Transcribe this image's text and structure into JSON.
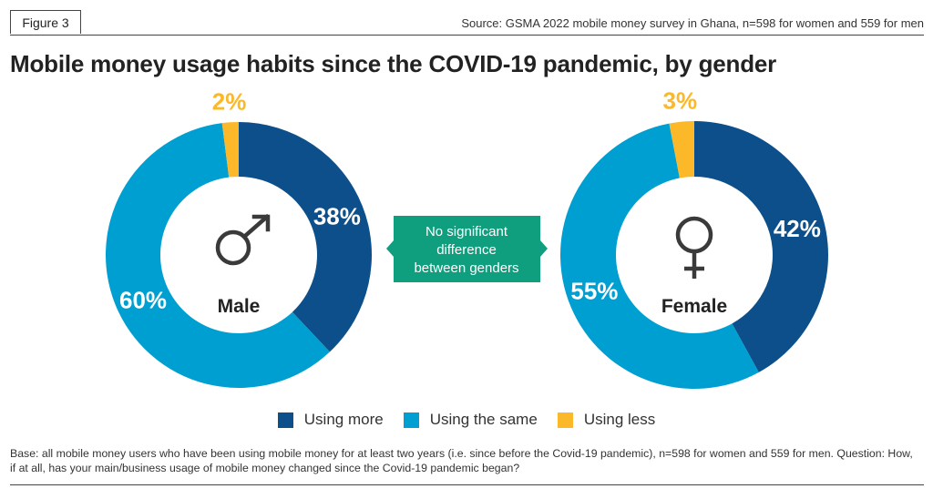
{
  "header": {
    "figure_label": "Figure 3",
    "source": "Source: GSMA 2022 mobile money survey in Ghana, n=598 for women and 559 for men",
    "title": "Mobile money usage habits since the COVID-19 pandemic, by gender"
  },
  "callout": {
    "lines": [
      "No significant",
      "difference",
      "between genders"
    ],
    "color": "#0f9f7e"
  },
  "colors": {
    "using_more": "#0d4f8b",
    "using_same": "#009fd1",
    "using_less": "#fbb829"
  },
  "chart_data": [
    {
      "type": "pie",
      "variant": "donut",
      "center_label": "Male",
      "center_icon": "male-symbol-icon",
      "categories": [
        "Using more",
        "Using the same",
        "Using less"
      ],
      "values": [
        38,
        60,
        2
      ],
      "labels": [
        "38%",
        "60%",
        "2%"
      ]
    },
    {
      "type": "pie",
      "variant": "donut",
      "center_label": "Female",
      "center_icon": "female-symbol-icon",
      "categories": [
        "Using more",
        "Using the same",
        "Using less"
      ],
      "values": [
        42,
        55,
        3
      ],
      "labels": [
        "42%",
        "55%",
        "3%"
      ]
    }
  ],
  "legend": {
    "items": [
      "Using more",
      "Using the same",
      "Using less"
    ],
    "placement": "bottom"
  },
  "footnote": "Base: all mobile money users who have been using mobile money for at least two years (i.e. since before the Covid-19 pandemic), n=598 for women and 559 for men. Question: How, if at all, has your main/business usage of mobile money changed since the Covid-19 pandemic began?"
}
